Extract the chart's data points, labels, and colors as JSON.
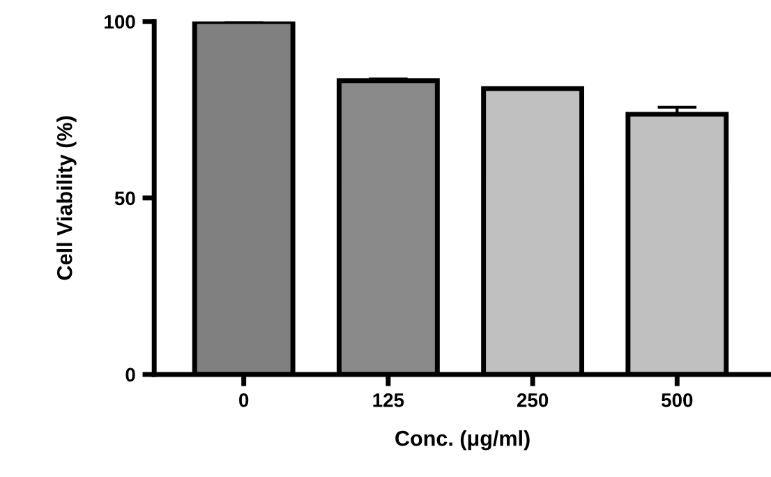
{
  "chart_data": {
    "type": "bar",
    "xlabel": "Conc. (μg/ml)",
    "ylabel": "Cell Viability (%)",
    "categories": [
      "0",
      "125",
      "250",
      "500"
    ],
    "values": [
      100,
      83.2,
      81.0,
      73.7
    ],
    "errors": [
      null,
      0.5,
      null,
      2
    ],
    "colors": [
      "#808080",
      "#8a8a8a",
      "#c0c0c0",
      "#c0c0c0"
    ],
    "ylim": [
      0,
      100
    ],
    "yticks": [
      0,
      50,
      100
    ],
    "grid": false,
    "legend": false
  }
}
